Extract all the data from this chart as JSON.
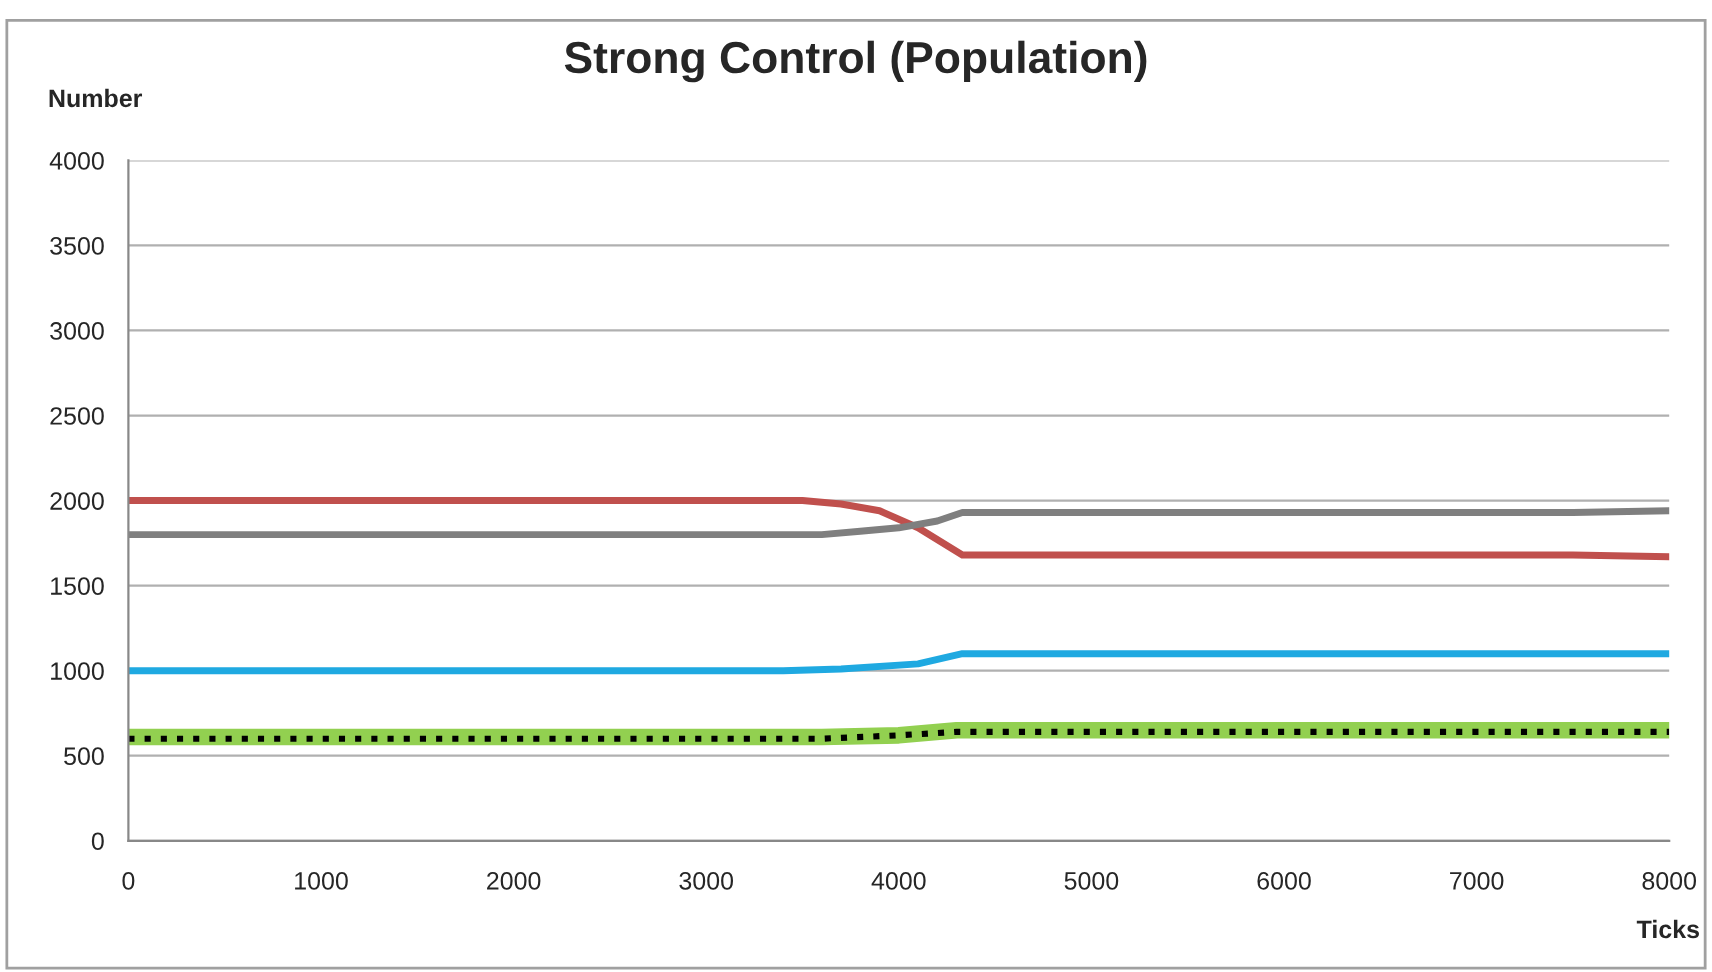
{
  "chart_data": {
    "type": "line",
    "title": "Strong Control (Population)",
    "xlabel": "Ticks",
    "ylabel": "Number",
    "series": [
      {
        "color": "#c0504d",
        "x": [
          0,
          3500,
          3700,
          3900,
          4100,
          4330,
          7500,
          8000
        ],
        "values": [
          2000,
          2000,
          1980,
          1940,
          1840,
          1680,
          1680,
          1670
        ]
      },
      {
        "color": "#7f7f7f",
        "x": [
          0,
          3600,
          3800,
          4000,
          4200,
          4330,
          7500,
          8000
        ],
        "values": [
          1800,
          1800,
          1820,
          1840,
          1880,
          1930,
          1930,
          1940
        ]
      },
      {
        "color": "#1fa9e1",
        "x": [
          0,
          3400,
          3700,
          4100,
          4330,
          8000
        ],
        "values": [
          1000,
          1000,
          1010,
          1040,
          1100,
          1100
        ]
      },
      {
        "color": "#92d050",
        "x": [
          0,
          3600,
          4000,
          4300,
          8000
        ],
        "values": [
          610,
          610,
          620,
          650,
          650
        ]
      },
      {
        "color": "#000000",
        "line_style": "dotted",
        "x": [
          0,
          3600,
          4000,
          4300,
          8000
        ],
        "values": [
          600,
          600,
          620,
          640,
          640
        ]
      }
    ],
    "xlim": [
      0,
      8000
    ],
    "xticks": [
      0,
      1000,
      2000,
      3000,
      4000,
      5000,
      6000,
      7000,
      8000
    ],
    "ylim": [
      0,
      4000
    ],
    "yticks": [
      0,
      500,
      1000,
      1500,
      2000,
      2500,
      3000,
      3500,
      4000
    ],
    "grid": "y"
  }
}
